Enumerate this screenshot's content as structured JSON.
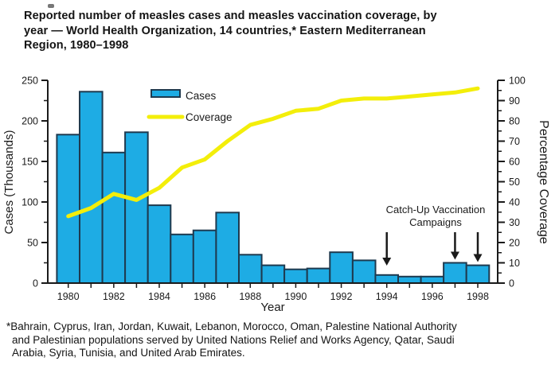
{
  "figure": {
    "title_lines": [
      "Reported number of measles cases and measles vaccination coverage, by",
      "year — World Health Organization, 14 countries,* Eastern Mediterranean",
      "Region, 1980–1998"
    ],
    "footnote_lines": [
      "*Bahrain, Cyprus, Iran, Jordan, Kuwait, Lebanon, Morocco, Oman, Palestine National Authority",
      "and Palestinian populations served by United Nations Relief and Works Agency, Qatar, Saudi",
      "Arabia, Syria, Tunisia, and United Arab Emirates."
    ]
  },
  "chart_data": {
    "type": "bar+line",
    "title": "Reported number of measles cases and measles vaccination coverage, by year — World Health Organization, 14 countries,* Eastern Mediterranean Region, 1980–1998",
    "x": [
      1980,
      1981,
      1982,
      1983,
      1984,
      1985,
      1986,
      1987,
      1988,
      1989,
      1990,
      1991,
      1992,
      1993,
      1994,
      1995,
      1996,
      1997,
      1998
    ],
    "xtick_labels": [
      "1980",
      "1982",
      "1984",
      "1986",
      "1988",
      "1990",
      "1992",
      "1994",
      "1996",
      "1998"
    ],
    "xlabel": "Year",
    "left_axis": {
      "label": "Cases (Thousands)",
      "range": [
        0,
        250
      ],
      "major_ticks": [
        0,
        50,
        100,
        150,
        200,
        250
      ],
      "minor_step": 25
    },
    "right_axis": {
      "label": "Percentage Coverage",
      "range": [
        0,
        100
      ],
      "major_step": 10,
      "minor_step": 5
    },
    "series": [
      {
        "name": "Cases",
        "type": "bar",
        "axis": "left",
        "values": [
          183,
          236,
          161,
          186,
          96,
          60,
          65,
          87,
          35,
          22,
          17,
          18,
          38,
          28,
          10,
          8,
          8,
          25,
          22
        ],
        "fill": "#1EACE4",
        "stroke": "#1E3A4F"
      },
      {
        "name": "Coverage",
        "type": "line",
        "axis": "right",
        "values": [
          33,
          37,
          44,
          41,
          47,
          57,
          61,
          70,
          78,
          81,
          85,
          86,
          90,
          91,
          91,
          92,
          93,
          94,
          96
        ],
        "color": "#F3EE0A"
      }
    ],
    "legend": {
      "position": "inside-top-left",
      "items": [
        {
          "label": "Cases",
          "swatch": "bar"
        },
        {
          "label": "Coverage",
          "swatch": "line"
        }
      ]
    },
    "annotation": {
      "lines": [
        "Catch-Up Vaccination",
        "Campaigns"
      ],
      "arrow_years": [
        1994,
        1997,
        1998
      ]
    },
    "grid": false,
    "colors": {
      "background": "#FFFFFF",
      "axis": "#1a1a1a",
      "text": "#1a1a1a"
    }
  }
}
